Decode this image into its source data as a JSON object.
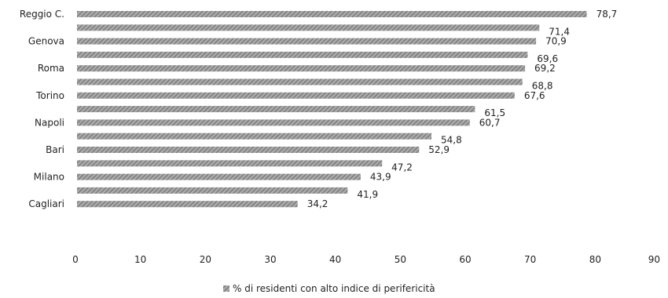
{
  "chart_data": {
    "type": "bar",
    "orientation": "horizontal",
    "series": [
      {
        "name": "% di residenti con alto indice di perifericità",
        "values": [
          78.7,
          71.4,
          70.9,
          69.6,
          69.2,
          68.8,
          67.6,
          61.5,
          60.7,
          54.8,
          52.9,
          47.2,
          43.9,
          41.9,
          34.2
        ],
        "value_labels": [
          "78,7",
          "71,4",
          "70,9",
          "69,6",
          "69,2",
          "68,8",
          "67,6",
          "61,5",
          "60,7",
          "54,8",
          "52,9",
          "47,2",
          "43,9",
          "41,9",
          "34,2"
        ]
      }
    ],
    "categories": [
      "Reggio C.",
      "",
      "Genova",
      "",
      "Roma",
      "",
      "Torino",
      "",
      "Napoli",
      "",
      "Bari",
      "",
      "Milano",
      "",
      "Cagliari"
    ],
    "xlim": [
      0,
      90
    ],
    "x_ticks": [
      "0",
      "10",
      "20",
      "30",
      "40",
      "50",
      "60",
      "70",
      "80",
      "90"
    ],
    "bar_color": "#8a8a8a",
    "grid": false,
    "legend_position": "bottom"
  }
}
